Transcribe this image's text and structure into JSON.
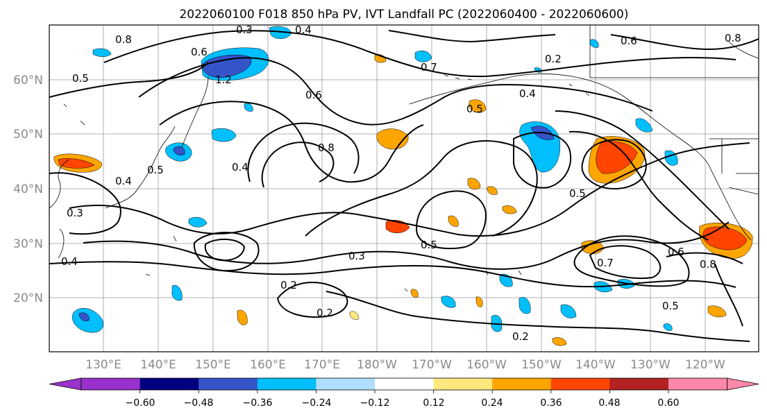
{
  "title": "2022060100 F018 850 hPa PV, IVT Landfall PC (2022060400 - 2022060600)",
  "map": {
    "lat_labels": [
      "60°N",
      "50°N",
      "40°N",
      "30°N",
      "20°N"
    ],
    "lon_labels": [
      "130°E",
      "140°E",
      "150°E",
      "160°E",
      "170°E",
      "180°W",
      "170°W",
      "160°W",
      "150°W",
      "140°W",
      "130°W",
      "120°W"
    ],
    "contour_labels": [
      "0.3",
      "0.4",
      "0.6",
      "0.5",
      "0.2",
      "0.8",
      "1.2",
      "0.4",
      "0.5",
      "0.6",
      "0.8",
      "0.4",
      "0.3",
      "0.5",
      "0.7",
      "0.2",
      "0.6",
      "0.8",
      "0.4",
      "0.2",
      "0.3",
      "0.5",
      "0.2",
      "0.4",
      "0.5",
      "0.6",
      "0.8",
      "0.7",
      "0.5"
    ]
  },
  "colorbar": {
    "colors": [
      "#9932CC",
      "#000080",
      "#3454C8",
      "#00BFFF",
      "#B0E0FF",
      "#FFFFFF",
      "#FFE97F",
      "#FFA500",
      "#FF4500",
      "#B22222",
      "#FF88AA"
    ],
    "tick_labels": [
      "−0.60",
      "−0.48",
      "−0.36",
      "−0.24",
      "−0.12",
      "0.12",
      "0.24",
      "0.36",
      "0.48",
      "0.60"
    ]
  }
}
